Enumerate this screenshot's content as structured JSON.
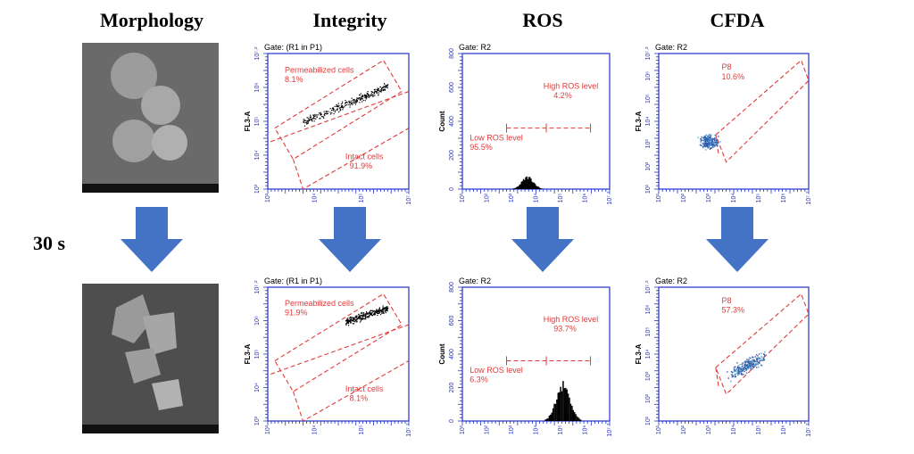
{
  "columns": [
    "Morphology",
    "Integrity",
    "ROS",
    "CFDA"
  ],
  "time_label": "30 s",
  "axes": {
    "integrity_x": [
      "10³",
      "10⁴",
      "10⁵",
      "10⁷·²"
    ],
    "integrity_y": [
      "10³",
      "10⁴",
      "10⁵",
      "10⁶",
      "10⁷·²"
    ],
    "ros_x": [
      "10¹",
      "10²",
      "10³",
      "10⁴",
      "10⁵",
      "10⁶",
      "10⁷·²"
    ],
    "ros_y": [
      "0",
      "200",
      "400",
      "600",
      "800"
    ],
    "cfda_x": [
      "10¹",
      "10²",
      "10³",
      "10⁴",
      "10⁵",
      "10⁶",
      "10⁷·²"
    ],
    "cfda_y": [
      "10¹",
      "10²",
      "10³",
      "10⁴",
      "10⁵",
      "10⁶",
      "10⁷·²"
    ]
  },
  "rows": [
    {
      "integrity": {
        "gate": "Gate: (R1 in P1)",
        "ylabel": "FL3-A",
        "annotations": [
          {
            "label": "Permeabilized cells",
            "value": "8.1%"
          },
          {
            "label": "Intact cells",
            "value": "91.9%"
          }
        ]
      },
      "ros": {
        "gate": "Gate: R2",
        "ylabel": "Count",
        "annotations": [
          {
            "label": "High ROS level",
            "value": "4.2%"
          },
          {
            "label": "Low ROS level",
            "value": "95.5%"
          }
        ]
      },
      "cfda": {
        "gate": "Gate: R2",
        "ylabel": "FL3-A",
        "annotations": [
          {
            "label": "P8",
            "value": "10.6%"
          }
        ]
      }
    },
    {
      "integrity": {
        "gate": "Gate: (R1 in P1)",
        "ylabel": "FL3-A",
        "annotations": [
          {
            "label": "Permeabilized cells",
            "value": "91.9%"
          },
          {
            "label": "Intact cells",
            "value": "8.1%"
          }
        ]
      },
      "ros": {
        "gate": "Gate: R2",
        "ylabel": "Count",
        "annotations": [
          {
            "label": "High ROS level",
            "value": "93.7%"
          },
          {
            "label": "Low ROS level",
            "value": "6.3%"
          }
        ]
      },
      "cfda": {
        "gate": "Gate: R2",
        "ylabel": "FL3-A",
        "annotations": [
          {
            "label": "P8",
            "value": "57.3%"
          }
        ]
      }
    }
  ]
}
